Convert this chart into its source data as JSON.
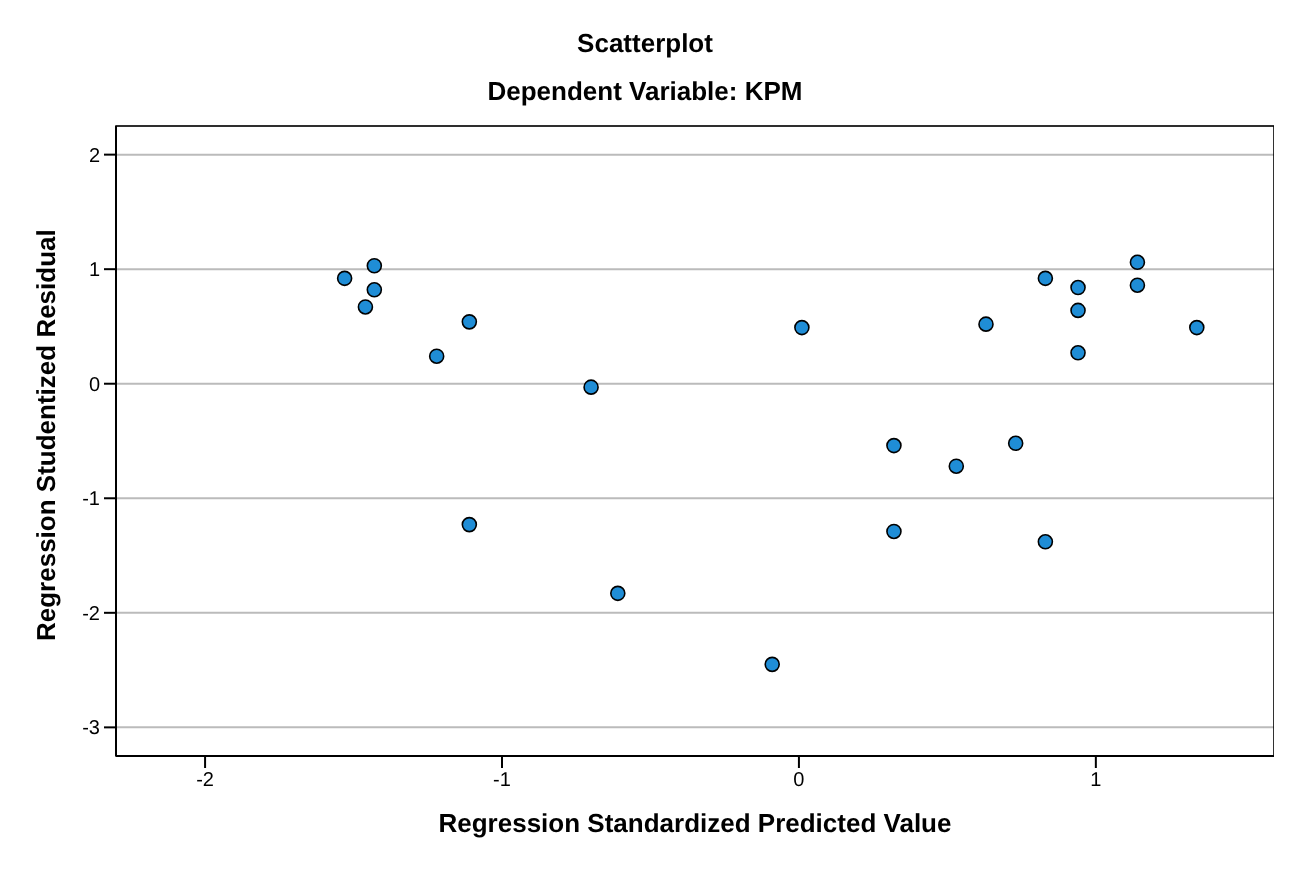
{
  "chart_data": {
    "type": "scatter",
    "title": "Scatterplot",
    "subtitle": "Dependent Variable: KPM",
    "xlabel": "Regression Standardized Predicted Value",
    "ylabel": "Regression Studentized Residual",
    "x": [
      -1.53,
      -1.43,
      -1.43,
      -1.46,
      -1.22,
      -1.11,
      -1.11,
      -0.7,
      -0.61,
      -0.09,
      0.01,
      0.32,
      0.32,
      0.53,
      0.63,
      0.73,
      0.83,
      0.83,
      0.94,
      0.94,
      0.94,
      1.14,
      1.14,
      1.34
    ],
    "values": [
      0.92,
      1.03,
      0.82,
      0.67,
      0.24,
      0.54,
      -1.23,
      -0.03,
      -1.83,
      -2.45,
      0.49,
      -0.54,
      -1.29,
      -0.72,
      0.52,
      -0.52,
      0.92,
      -1.38,
      0.84,
      0.64,
      0.27,
      1.06,
      0.86,
      0.49
    ],
    "color": "#1f8dd6",
    "marker": "circle",
    "grid": "y",
    "xlim": [
      -2.3,
      1.6
    ],
    "xticks": [
      -2,
      -1,
      0,
      1
    ],
    "ylim": [
      -3.25,
      2.25
    ],
    "yticks": [
      -3,
      -2,
      -1,
      0,
      1,
      2
    ]
  }
}
